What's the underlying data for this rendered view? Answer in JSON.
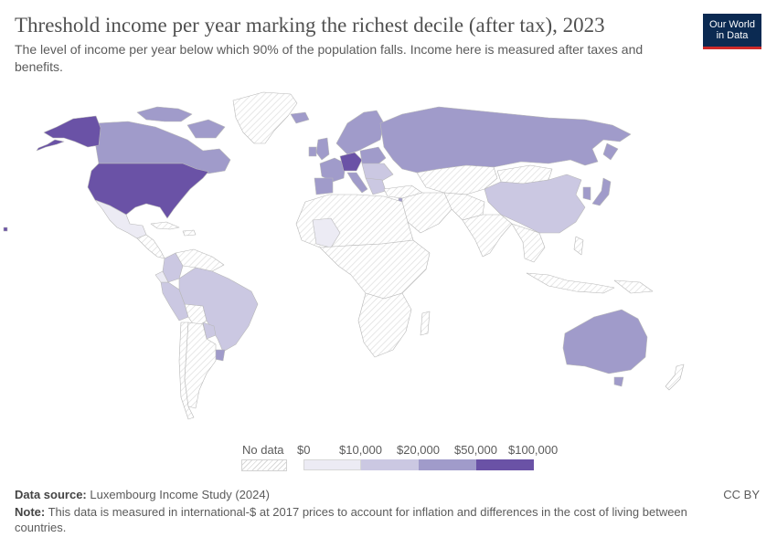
{
  "header": {
    "title": "Threshold income per year marking the richest decile (after tax), 2023",
    "subtitle": "The level of income per year below which 90% of the population falls. Income here is measured after taxes and benefits."
  },
  "logo": {
    "line1": "Our World",
    "line2": "in Data",
    "background": "#0b2a52",
    "accent": "#cd2a2a"
  },
  "legend": {
    "no_data": "No data",
    "ticks": [
      "$0",
      "$10,000",
      "$20,000",
      "$50,000",
      "$100,000"
    ],
    "bin_colors": [
      "#ecebf4",
      "#cbc8e2",
      "#a09bca",
      "#6a52a6"
    ],
    "no_data_color": "hatched-gray"
  },
  "colors": {
    "c_lt5": "#ecebf4",
    "c_10_20": "#cbc8e2",
    "c_20_50": "#a09bca",
    "c_50_100": "#6a52a6",
    "no_data_fill": "#f3f3f3",
    "border": "#b8b8b8"
  },
  "footer": {
    "source_label": "Data source:",
    "source_value": "Luxembourg Income Study (2024)",
    "note_label": "Note:",
    "note_value": "This data is measured in international-$ at 2017 prices to account for inflation and differences in the cost of living between countries.",
    "license": "CC BY"
  }
}
